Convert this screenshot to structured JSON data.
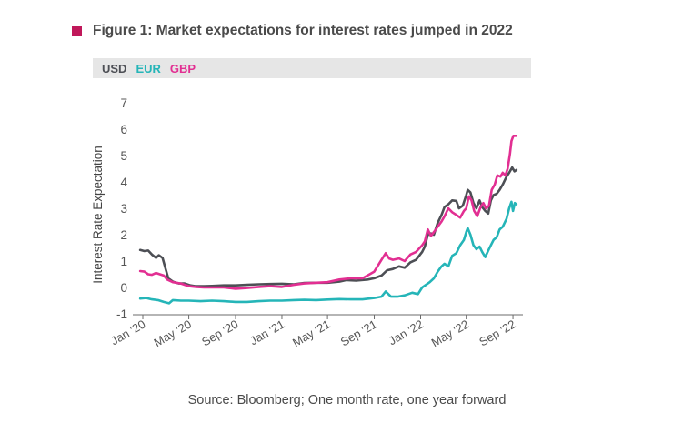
{
  "title": "Figure 1: Market expectations for interest rates jumped in 2022",
  "legend": [
    {
      "label": "USD",
      "color": "#4d4f55"
    },
    {
      "label": "EUR",
      "color": "#25b5b8"
    },
    {
      "label": "GBP",
      "color": "#e22f92"
    }
  ],
  "source": "Source: Bloomberg; One month rate, one year forward",
  "chart_data": {
    "type": "line",
    "title": "Figure 1: Market expectations for interest rates jumped in 2022",
    "ylabel": "Interest Rate Expectation",
    "xlabel": "",
    "ylim": [
      -1,
      7
    ],
    "yticks": [
      "-1",
      "0",
      "1",
      "2",
      "3",
      "4",
      "5",
      "6",
      "7"
    ],
    "xlim": [
      "2019-12-20",
      "2022-09-20"
    ],
    "xticks": [
      {
        "label": "Jan '20",
        "date": "2020-01-01"
      },
      {
        "label": "May '20",
        "date": "2020-05-01"
      },
      {
        "label": "Sep '20",
        "date": "2020-09-01"
      },
      {
        "label": "Jan '21",
        "date": "2021-01-01"
      },
      {
        "label": "May '21",
        "date": "2021-05-01"
      },
      {
        "label": "Sep '21",
        "date": "2021-09-01"
      },
      {
        "label": "Jan '22",
        "date": "2022-01-01"
      },
      {
        "label": "May '22",
        "date": "2022-05-01"
      },
      {
        "label": "Sep '22",
        "date": "2022-09-01"
      }
    ],
    "grid": false,
    "legend_position": "top",
    "series": [
      {
        "name": "USD",
        "color": "#4d4f55",
        "points": [
          [
            "2019-12-25",
            1.42
          ],
          [
            "2020-01-05",
            1.38
          ],
          [
            "2020-01-15",
            1.4
          ],
          [
            "2020-01-25",
            1.25
          ],
          [
            "2020-02-05",
            1.12
          ],
          [
            "2020-02-12",
            1.22
          ],
          [
            "2020-02-22",
            1.12
          ],
          [
            "2020-03-01",
            0.7
          ],
          [
            "2020-03-08",
            0.35
          ],
          [
            "2020-03-20",
            0.22
          ],
          [
            "2020-04-05",
            0.15
          ],
          [
            "2020-04-20",
            0.15
          ],
          [
            "2020-05-05",
            0.08
          ],
          [
            "2020-05-20",
            0.05
          ],
          [
            "2020-06-10",
            0.05
          ],
          [
            "2020-07-01",
            0.06
          ],
          [
            "2020-08-01",
            0.08
          ],
          [
            "2020-09-01",
            0.08
          ],
          [
            "2020-10-01",
            0.1
          ],
          [
            "2020-11-01",
            0.12
          ],
          [
            "2020-12-01",
            0.13
          ],
          [
            "2021-01-01",
            0.14
          ],
          [
            "2021-02-01",
            0.12
          ],
          [
            "2021-03-01",
            0.17
          ],
          [
            "2021-04-01",
            0.18
          ],
          [
            "2021-05-01",
            0.18
          ],
          [
            "2021-06-01",
            0.22
          ],
          [
            "2021-06-20",
            0.28
          ],
          [
            "2021-07-15",
            0.26
          ],
          [
            "2021-08-15",
            0.3
          ],
          [
            "2021-09-01",
            0.35
          ],
          [
            "2021-09-20",
            0.45
          ],
          [
            "2021-10-05",
            0.65
          ],
          [
            "2021-10-20",
            0.7
          ],
          [
            "2021-11-05",
            0.8
          ],
          [
            "2021-11-20",
            0.75
          ],
          [
            "2021-12-05",
            0.95
          ],
          [
            "2021-12-20",
            1.05
          ],
          [
            "2022-01-05",
            1.35
          ],
          [
            "2022-01-12",
            1.55
          ],
          [
            "2022-01-20",
            2.0
          ],
          [
            "2022-01-28",
            2.05
          ],
          [
            "2022-02-05",
            2.0
          ],
          [
            "2022-02-15",
            2.45
          ],
          [
            "2022-02-25",
            2.75
          ],
          [
            "2022-03-05",
            3.05
          ],
          [
            "2022-03-15",
            3.15
          ],
          [
            "2022-03-25",
            3.3
          ],
          [
            "2022-04-05",
            3.28
          ],
          [
            "2022-04-12",
            3.0
          ],
          [
            "2022-04-22",
            3.1
          ],
          [
            "2022-05-01",
            3.5
          ],
          [
            "2022-05-05",
            3.7
          ],
          [
            "2022-05-12",
            3.6
          ],
          [
            "2022-05-20",
            3.2
          ],
          [
            "2022-05-28",
            3.0
          ],
          [
            "2022-06-05",
            3.3
          ],
          [
            "2022-06-12",
            3.05
          ],
          [
            "2022-06-20",
            2.9
          ],
          [
            "2022-06-28",
            2.8
          ],
          [
            "2022-07-05",
            3.3
          ],
          [
            "2022-07-12",
            3.5
          ],
          [
            "2022-07-20",
            3.55
          ],
          [
            "2022-07-28",
            3.7
          ],
          [
            "2022-08-05",
            3.9
          ],
          [
            "2022-08-15",
            4.2
          ],
          [
            "2022-08-22",
            4.35
          ],
          [
            "2022-08-30",
            4.55
          ],
          [
            "2022-09-05",
            4.4
          ],
          [
            "2022-09-10",
            4.45
          ]
        ]
      },
      {
        "name": "EUR",
        "color": "#25b5b8",
        "points": [
          [
            "2019-12-25",
            -0.42
          ],
          [
            "2020-01-10",
            -0.4
          ],
          [
            "2020-01-25",
            -0.45
          ],
          [
            "2020-02-10",
            -0.48
          ],
          [
            "2020-02-25",
            -0.55
          ],
          [
            "2020-03-10",
            -0.6
          ],
          [
            "2020-03-20",
            -0.48
          ],
          [
            "2020-04-10",
            -0.5
          ],
          [
            "2020-05-01",
            -0.5
          ],
          [
            "2020-06-01",
            -0.52
          ],
          [
            "2020-07-01",
            -0.5
          ],
          [
            "2020-08-01",
            -0.52
          ],
          [
            "2020-09-01",
            -0.55
          ],
          [
            "2020-10-01",
            -0.55
          ],
          [
            "2020-11-01",
            -0.52
          ],
          [
            "2020-12-01",
            -0.5
          ],
          [
            "2021-01-01",
            -0.5
          ],
          [
            "2021-02-01",
            -0.48
          ],
          [
            "2021-03-01",
            -0.47
          ],
          [
            "2021-04-01",
            -0.48
          ],
          [
            "2021-05-01",
            -0.46
          ],
          [
            "2021-06-01",
            -0.44
          ],
          [
            "2021-07-01",
            -0.45
          ],
          [
            "2021-08-01",
            -0.45
          ],
          [
            "2021-09-01",
            -0.4
          ],
          [
            "2021-09-20",
            -0.35
          ],
          [
            "2021-10-01",
            -0.15
          ],
          [
            "2021-10-15",
            -0.35
          ],
          [
            "2021-11-01",
            -0.35
          ],
          [
            "2021-11-20",
            -0.3
          ],
          [
            "2021-12-10",
            -0.2
          ],
          [
            "2021-12-25",
            -0.25
          ],
          [
            "2022-01-05",
            0.0
          ],
          [
            "2022-01-15",
            0.1
          ],
          [
            "2022-01-25",
            0.2
          ],
          [
            "2022-02-05",
            0.35
          ],
          [
            "2022-02-15",
            0.6
          ],
          [
            "2022-02-25",
            0.8
          ],
          [
            "2022-03-05",
            0.9
          ],
          [
            "2022-03-15",
            0.8
          ],
          [
            "2022-03-25",
            1.2
          ],
          [
            "2022-04-05",
            1.3
          ],
          [
            "2022-04-15",
            1.6
          ],
          [
            "2022-04-25",
            1.8
          ],
          [
            "2022-05-01",
            2.1
          ],
          [
            "2022-05-05",
            2.25
          ],
          [
            "2022-05-12",
            2.0
          ],
          [
            "2022-05-20",
            1.6
          ],
          [
            "2022-05-28",
            1.45
          ],
          [
            "2022-06-05",
            1.55
          ],
          [
            "2022-06-12",
            1.35
          ],
          [
            "2022-06-20",
            1.15
          ],
          [
            "2022-06-28",
            1.4
          ],
          [
            "2022-07-05",
            1.6
          ],
          [
            "2022-07-12",
            1.8
          ],
          [
            "2022-07-20",
            1.9
          ],
          [
            "2022-07-28",
            2.2
          ],
          [
            "2022-08-05",
            2.3
          ],
          [
            "2022-08-15",
            2.6
          ],
          [
            "2022-08-22",
            3.0
          ],
          [
            "2022-08-28",
            3.25
          ],
          [
            "2022-09-01",
            2.9
          ],
          [
            "2022-09-06",
            3.2
          ],
          [
            "2022-09-10",
            3.15
          ]
        ]
      },
      {
        "name": "GBP",
        "color": "#e22f92",
        "points": [
          [
            "2019-12-25",
            0.62
          ],
          [
            "2020-01-05",
            0.6
          ],
          [
            "2020-01-15",
            0.5
          ],
          [
            "2020-01-25",
            0.48
          ],
          [
            "2020-02-05",
            0.55
          ],
          [
            "2020-02-15",
            0.5
          ],
          [
            "2020-02-25",
            0.45
          ],
          [
            "2020-03-05",
            0.3
          ],
          [
            "2020-03-20",
            0.2
          ],
          [
            "2020-04-10",
            0.15
          ],
          [
            "2020-05-01",
            0.05
          ],
          [
            "2020-05-20",
            0.02
          ],
          [
            "2020-06-10",
            0.0
          ],
          [
            "2020-07-01",
            0.0
          ],
          [
            "2020-08-01",
            0.0
          ],
          [
            "2020-09-01",
            -0.05
          ],
          [
            "2020-10-01",
            -0.02
          ],
          [
            "2020-11-01",
            0.02
          ],
          [
            "2020-12-01",
            0.05
          ],
          [
            "2021-01-01",
            0.02
          ],
          [
            "2021-02-01",
            0.1
          ],
          [
            "2021-03-01",
            0.15
          ],
          [
            "2021-04-01",
            0.18
          ],
          [
            "2021-05-01",
            0.2
          ],
          [
            "2021-06-01",
            0.3
          ],
          [
            "2021-07-01",
            0.35
          ],
          [
            "2021-08-01",
            0.35
          ],
          [
            "2021-08-20",
            0.5
          ],
          [
            "2021-09-01",
            0.6
          ],
          [
            "2021-09-20",
            1.05
          ],
          [
            "2021-10-01",
            1.3
          ],
          [
            "2021-10-10",
            1.1
          ],
          [
            "2021-10-20",
            1.05
          ],
          [
            "2021-11-05",
            1.1
          ],
          [
            "2021-11-20",
            1.0
          ],
          [
            "2021-12-05",
            1.25
          ],
          [
            "2021-12-20",
            1.35
          ],
          [
            "2022-01-05",
            1.6
          ],
          [
            "2022-01-12",
            1.75
          ],
          [
            "2022-01-20",
            2.2
          ],
          [
            "2022-01-28",
            1.95
          ],
          [
            "2022-02-05",
            2.1
          ],
          [
            "2022-02-15",
            2.3
          ],
          [
            "2022-02-25",
            2.5
          ],
          [
            "2022-03-05",
            2.7
          ],
          [
            "2022-03-15",
            3.0
          ],
          [
            "2022-03-25",
            2.85
          ],
          [
            "2022-04-05",
            2.75
          ],
          [
            "2022-04-15",
            2.65
          ],
          [
            "2022-04-25",
            2.9
          ],
          [
            "2022-05-01",
            3.0
          ],
          [
            "2022-05-08",
            3.45
          ],
          [
            "2022-05-15",
            3.3
          ],
          [
            "2022-05-22",
            2.9
          ],
          [
            "2022-05-30",
            2.7
          ],
          [
            "2022-06-08",
            3.05
          ],
          [
            "2022-06-15",
            3.2
          ],
          [
            "2022-06-22",
            3.0
          ],
          [
            "2022-06-30",
            3.1
          ],
          [
            "2022-07-07",
            3.7
          ],
          [
            "2022-07-15",
            3.9
          ],
          [
            "2022-07-22",
            4.25
          ],
          [
            "2022-07-30",
            4.2
          ],
          [
            "2022-08-05",
            4.35
          ],
          [
            "2022-08-12",
            4.25
          ],
          [
            "2022-08-18",
            4.5
          ],
          [
            "2022-08-24",
            5.05
          ],
          [
            "2022-08-28",
            5.55
          ],
          [
            "2022-09-02",
            5.75
          ],
          [
            "2022-09-10",
            5.75
          ]
        ]
      }
    ]
  }
}
